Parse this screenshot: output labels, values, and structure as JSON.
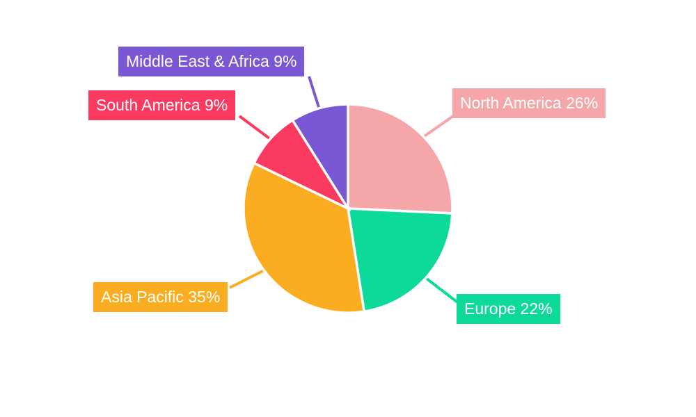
{
  "canvas": {
    "background_color": "#ffffff",
    "label_text_color": "#ffffff"
  },
  "chart_data": {
    "type": "pie",
    "title": "",
    "legend_position": "callout-labels",
    "grid": false,
    "start_angle_deg": 0,
    "direction": "clockwise",
    "slice_border_color": "#ffffff",
    "slices": [
      {
        "label": "North America",
        "value": 26,
        "display": "North America 26%",
        "color": "#F5A6A9"
      },
      {
        "label": "Europe",
        "value": 22,
        "display": "Europe 22%",
        "color": "#0DD99A"
      },
      {
        "label": "Asia Pacific",
        "value": 35,
        "display": "Asia Pacific 35%",
        "color": "#FAAD20"
      },
      {
        "label": "South America",
        "value": 9,
        "display": "South America 9%",
        "color": "#FA3A5F"
      },
      {
        "label": "Middle East & Africa",
        "value": 9,
        "display": "Middle East & Africa 9%",
        "color": "#7A58D3"
      }
    ]
  }
}
